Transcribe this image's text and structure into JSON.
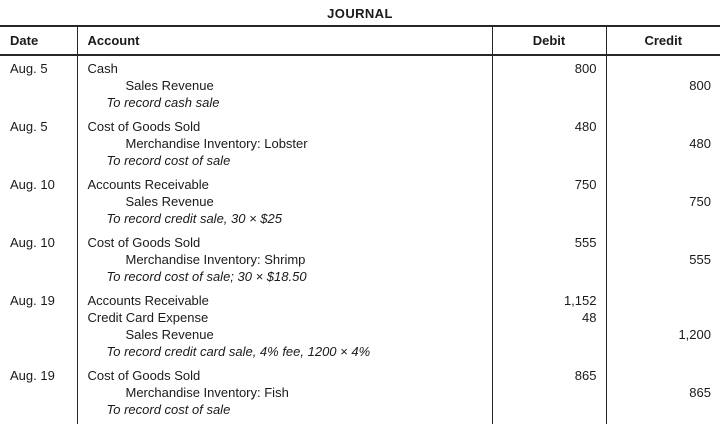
{
  "title": "JOURNAL",
  "columns": {
    "date": "Date",
    "account": "Account",
    "debit": "Debit",
    "credit": "Credit"
  },
  "colors": {
    "text": "#1a1a1a",
    "border": "#262626"
  },
  "entries": [
    {
      "date": "Aug. 5",
      "lines": [
        {
          "text": "Cash",
          "type": "debit-account",
          "debit": "800"
        },
        {
          "text": "Sales Revenue",
          "type": "credit-account",
          "credit": "800"
        },
        {
          "text": "To record cash sale",
          "type": "memo"
        }
      ]
    },
    {
      "date": "Aug. 5",
      "lines": [
        {
          "text": "Cost of Goods Sold",
          "type": "debit-account",
          "debit": "480"
        },
        {
          "text": "Merchandise Inventory: Lobster",
          "type": "credit-account",
          "credit": "480"
        },
        {
          "text": "To record cost of sale",
          "type": "memo"
        }
      ]
    },
    {
      "date": "Aug. 10",
      "lines": [
        {
          "text": "Accounts Receivable",
          "type": "debit-account",
          "debit": "750"
        },
        {
          "text": "Sales Revenue",
          "type": "credit-account",
          "credit": "750"
        },
        {
          "text": "To record credit sale, 30 × $25",
          "type": "memo"
        }
      ]
    },
    {
      "date": "Aug. 10",
      "lines": [
        {
          "text": "Cost of Goods Sold",
          "type": "debit-account",
          "debit": "555"
        },
        {
          "text": "Merchandise Inventory: Shrimp",
          "type": "credit-account",
          "credit": "555"
        },
        {
          "text": "To record cost of sale; 30 × $18.50",
          "type": "memo"
        }
      ]
    },
    {
      "date": "Aug. 19",
      "lines": [
        {
          "text": "Accounts Receivable",
          "type": "debit-account",
          "debit": "1,152"
        },
        {
          "text": "Credit Card Expense",
          "type": "debit-account",
          "debit": "48"
        },
        {
          "text": "Sales Revenue",
          "type": "credit-account",
          "credit": "1,200"
        },
        {
          "text": "To record credit card sale, 4% fee, 1200 × 4%",
          "type": "memo"
        }
      ]
    },
    {
      "date": "Aug. 19",
      "lines": [
        {
          "text": "Cost of Goods Sold",
          "type": "debit-account",
          "debit": "865"
        },
        {
          "text": "Merchandise Inventory: Fish",
          "type": "credit-account",
          "credit": "865"
        },
        {
          "text": "To record cost of sale",
          "type": "memo"
        }
      ]
    }
  ]
}
